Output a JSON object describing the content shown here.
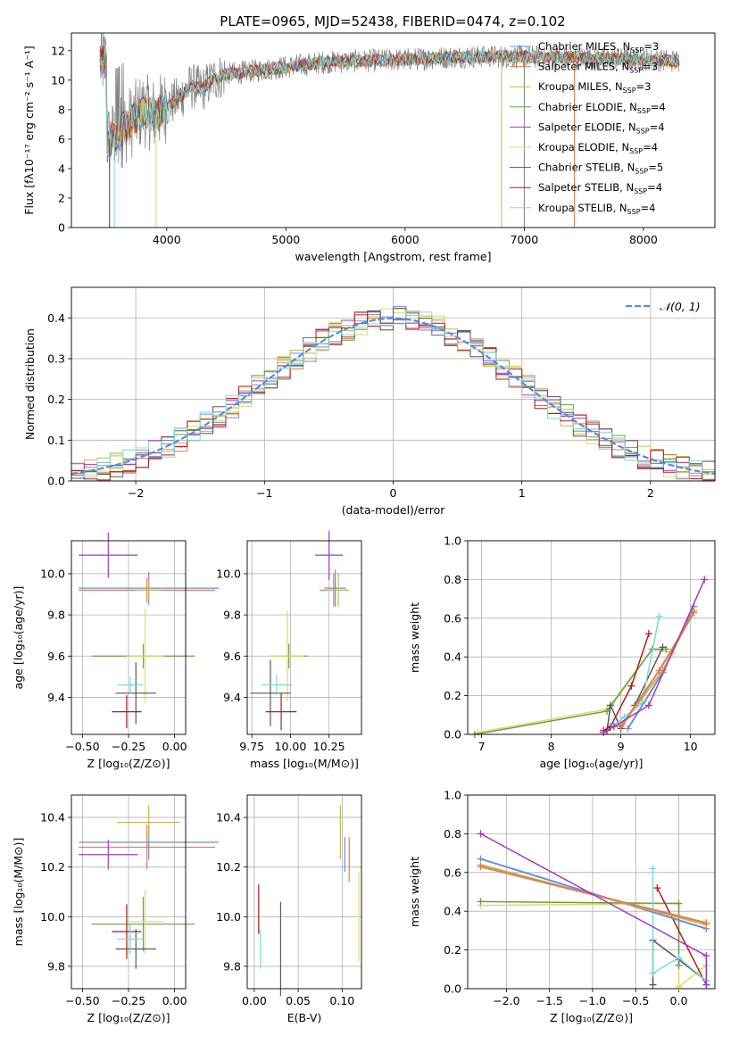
{
  "figure": {
    "title": "PLATE=0965, MJD=52438, FIBERID=0474, z=0.102"
  },
  "colors": {
    "miles_chabrier": "#6a8fdb",
    "miles_salpeter": "#e07c50",
    "miles_kroupa": "#c8b454",
    "elodie_chabrier": "#6b9c52",
    "elodie_salpeter": "#a03cc0",
    "elodie_kroupa": "#d8de62",
    "stelib_chabrier": "#585858",
    "stelib_salpeter": "#b01c1c",
    "stelib_kroupa": "#7ed8dc",
    "gray": "#7f7f7f"
  },
  "chart_data": [
    {
      "id": "spectrum",
      "type": "line",
      "xlabel": "wavelength [Angstrom, rest frame]",
      "ylabel": "Flux [fλ10⁻¹⁷ erg cm⁻² s⁻¹ A⁻¹]",
      "xlim": [
        3200,
        8600
      ],
      "ylim": [
        0,
        13.2
      ],
      "xticks": [
        4000,
        5000,
        6000,
        7000,
        8000
      ],
      "yticks": [
        0,
        2,
        4,
        6,
        8,
        10,
        12
      ],
      "continuum": {
        "x": [
          3500,
          3600,
          3700,
          3800,
          3900,
          4000,
          4100,
          4200,
          4300,
          4400,
          4500,
          4700,
          5000,
          5300,
          5600,
          6000,
          6500,
          7000,
          7500,
          8000,
          8300
        ],
        "y": [
          5.9,
          6.4,
          7.2,
          8.0,
          7.6,
          8.3,
          8.7,
          9.6,
          9.4,
          10.1,
          10.4,
          10.6,
          10.9,
          11.2,
          11.3,
          11.4,
          11.6,
          11.6,
          11.5,
          11.4,
          11.3
        ]
      },
      "legend": [
        {
          "label": "Chabrier MILES, N",
          "sub": "SSP",
          "suffix": "=3"
        },
        {
          "label": "Salpeter MILES, N",
          "sub": "SSP",
          "suffix": "=3"
        },
        {
          "label": "Kroupa MILES, N",
          "sub": "SSP",
          "suffix": "=3"
        },
        {
          "label": "Chabrier ELODIE, N",
          "sub": "SSP",
          "suffix": "=4"
        },
        {
          "label": "Salpeter ELODIE, N",
          "sub": "SSP",
          "suffix": "=4"
        },
        {
          "label": "Kroupa ELODIE, N",
          "sub": "SSP",
          "suffix": "=4"
        },
        {
          "label": "Chabrier STELIB, N",
          "sub": "SSP",
          "suffix": "=5"
        },
        {
          "label": "Salpeter STELIB, N",
          "sub": "SSP",
          "suffix": "=4"
        },
        {
          "label": "Kroupa STELIB, N",
          "sub": "SSP",
          "suffix": "=4"
        }
      ],
      "grid": false
    },
    {
      "id": "residuals",
      "type": "histogram",
      "xlabel": "(data-model)/error",
      "ylabel": "Normed distribution",
      "xlim": [
        -2.5,
        2.5
      ],
      "ylim": [
        0,
        0.475
      ],
      "xticks": [
        -2,
        -1,
        0,
        1,
        2
      ],
      "yticks": [
        0.0,
        0.1,
        0.2,
        0.3,
        0.4
      ],
      "bin_width": 0.1,
      "legend": "𝒩(0, 1)",
      "grid": true
    },
    {
      "id": "age_vs_Z",
      "type": "errorbar",
      "xlabel": "Z [log₁₀(Z/Z⊙)]",
      "ylabel": "age  [log₁₀(age/yr)]",
      "xlim": [
        -0.56,
        0.06
      ],
      "ylim": [
        9.22,
        10.16
      ],
      "xticks": [
        -0.5,
        -0.25,
        0.0
      ],
      "yticks": [
        9.4,
        9.6,
        9.8,
        10.0
      ],
      "points": [
        {
          "x": -0.14,
          "y": 9.93,
          "xerr": 0.38,
          "yerr": 0.08,
          "c": "miles_chabrier"
        },
        {
          "x": -0.15,
          "y": 9.92,
          "xerr": 0.37,
          "yerr": 0.06,
          "c": "miles_salpeter"
        },
        {
          "x": -0.14,
          "y": 9.92,
          "xerr": 0.07,
          "yerr": 0.05,
          "c": "miles_kroupa"
        },
        {
          "x": -0.17,
          "y": 9.6,
          "xerr": 0.28,
          "yerr": 0.06,
          "c": "elodie_chabrier"
        },
        {
          "x": -0.36,
          "y": 10.09,
          "xerr": 0.16,
          "yerr": 0.11,
          "c": "elodie_salpeter"
        },
        {
          "x": -0.16,
          "y": 9.6,
          "xerr": 0.1,
          "yerr": 0.23,
          "c": "elodie_kroupa"
        },
        {
          "x": -0.21,
          "y": 9.42,
          "xerr": 0.11,
          "yerr": 0.15,
          "c": "stelib_chabrier"
        },
        {
          "x": -0.26,
          "y": 9.33,
          "xerr": 0.08,
          "yerr": 0.08,
          "c": "stelib_salpeter"
        },
        {
          "x": -0.24,
          "y": 9.46,
          "xerr": 0.07,
          "yerr": 0.04,
          "c": "stelib_kroupa"
        }
      ],
      "grid": true
    },
    {
      "id": "age_vs_mass",
      "type": "errorbar",
      "xlabel": "mass [log₁₀(M/M⊙)]",
      "ylabel": "",
      "xlim": [
        9.72,
        10.46
      ],
      "ylim": [
        9.22,
        10.16
      ],
      "xticks": [
        9.75,
        10.0,
        10.25
      ],
      "yticks": [
        9.4,
        9.6,
        9.8,
        10.0
      ],
      "points": [
        {
          "x": 10.29,
          "y": 9.93,
          "xerr": 0.07,
          "yerr": 0.09,
          "c": "miles_chabrier"
        },
        {
          "x": 10.28,
          "y": 9.92,
          "xerr": 0.09,
          "yerr": 0.08,
          "c": "miles_salpeter"
        },
        {
          "x": 10.31,
          "y": 9.92,
          "xerr": 0.07,
          "yerr": 0.08,
          "c": "miles_kroupa"
        },
        {
          "x": 9.99,
          "y": 9.6,
          "xerr": 0.12,
          "yerr": 0.06,
          "c": "elodie_chabrier"
        },
        {
          "x": 10.25,
          "y": 10.09,
          "xerr": 0.09,
          "yerr": 0.12,
          "c": "elodie_salpeter"
        },
        {
          "x": 9.98,
          "y": 9.6,
          "xerr": 0.11,
          "yerr": 0.22,
          "c": "elodie_kroupa"
        },
        {
          "x": 9.87,
          "y": 9.42,
          "xerr": 0.13,
          "yerr": 0.16,
          "c": "stelib_chabrier"
        },
        {
          "x": 9.94,
          "y": 9.33,
          "xerr": 0.1,
          "yerr": 0.09,
          "c": "stelib_salpeter"
        },
        {
          "x": 9.91,
          "y": 9.46,
          "xerr": 0.1,
          "yerr": 0.05,
          "c": "stelib_kroupa"
        }
      ],
      "grid": true
    },
    {
      "id": "mass_vs_Z",
      "type": "errorbar",
      "xlabel": "Z [log₁₀(Z/Z⊙)]",
      "ylabel": "mass [log₁₀(M/M⊙)]",
      "xlim": [
        -0.56,
        0.06
      ],
      "ylim": [
        9.71,
        10.49
      ],
      "xticks": [
        -0.5,
        -0.25,
        0.0
      ],
      "yticks": [
        9.8,
        10.0,
        10.2,
        10.4
      ],
      "points": [
        {
          "x": -0.14,
          "y": 10.3,
          "xerr": 0.38,
          "yerr": 0.07,
          "c": "miles_chabrier"
        },
        {
          "x": -0.15,
          "y": 10.28,
          "xerr": 0.37,
          "yerr": 0.09,
          "c": "miles_salpeter"
        },
        {
          "x": -0.14,
          "y": 10.38,
          "xerr": 0.17,
          "yerr": 0.07,
          "c": "miles_kroupa"
        },
        {
          "x": -0.17,
          "y": 9.97,
          "xerr": 0.28,
          "yerr": 0.11,
          "c": "elodie_chabrier"
        },
        {
          "x": -0.36,
          "y": 10.25,
          "xerr": 0.16,
          "yerr": 0.06,
          "c": "elodie_salpeter"
        },
        {
          "x": -0.16,
          "y": 9.98,
          "xerr": 0.1,
          "yerr": 0.13,
          "c": "elodie_kroupa"
        },
        {
          "x": -0.21,
          "y": 9.87,
          "xerr": 0.11,
          "yerr": 0.08,
          "c": "stelib_chabrier"
        },
        {
          "x": -0.26,
          "y": 9.94,
          "xerr": 0.08,
          "yerr": 0.11,
          "c": "stelib_salpeter"
        },
        {
          "x": -0.24,
          "y": 9.91,
          "xerr": 0.07,
          "yerr": 0.06,
          "c": "stelib_kroupa"
        }
      ],
      "grid": true
    },
    {
      "id": "mass_vs_ebv",
      "type": "errorbar",
      "xlabel": "E(B-V)",
      "ylabel": "",
      "xlim": [
        -0.008,
        0.122
      ],
      "ylim": [
        9.71,
        10.49
      ],
      "xticks": [
        0.0,
        0.05,
        0.1
      ],
      "yticks": [
        9.8,
        10.0,
        10.2,
        10.4
      ],
      "points": [
        {
          "x": 0.103,
          "y": 10.25,
          "xerr": 0,
          "yerr": 0.07,
          "c": "miles_chabrier"
        },
        {
          "x": 0.108,
          "y": 10.23,
          "xerr": 0,
          "yerr": 0.09,
          "c": "miles_salpeter"
        },
        {
          "x": 0.098,
          "y": 10.34,
          "xerr": 0,
          "yerr": 0.11,
          "c": "miles_kroupa"
        },
        {
          "x": 0.119,
          "y": 10.0,
          "xerr": 0,
          "yerr": 0.18,
          "c": "elodie_kroupa"
        },
        {
          "x": 0.03,
          "y": 9.87,
          "xerr": 0,
          "yerr": 0.19,
          "c": "stelib_chabrier"
        },
        {
          "x": 0.005,
          "y": 10.03,
          "xerr": 0,
          "yerr": 0.1,
          "c": "stelib_salpeter"
        },
        {
          "x": 0.007,
          "y": 9.87,
          "xerr": 0,
          "yerr": 0.08,
          "c": "stelib_kroupa"
        }
      ],
      "grid": true
    },
    {
      "id": "weight_vs_age",
      "type": "line",
      "xlabel": "age  [log₁₀(age/yr)]",
      "ylabel": "mass weight",
      "xlim": [
        6.8,
        10.35
      ],
      "ylim": [
        0,
        1.0
      ],
      "xticks": [
        7,
        8,
        9,
        10
      ],
      "yticks": [
        0.0,
        0.2,
        0.4,
        0.6,
        0.8,
        1.0
      ],
      "series": [
        {
          "c": "miles_chabrier",
          "x": [
            9.1,
            9.6,
            10.05
          ],
          "y": [
            0.03,
            0.32,
            0.66
          ]
        },
        {
          "c": "miles_salpeter",
          "x": [
            9.0,
            9.55,
            10.05
          ],
          "y": [
            0.04,
            0.33,
            0.63
          ]
        },
        {
          "c": "miles_kroupa",
          "x": [
            9.02,
            9.6,
            10.05
          ],
          "y": [
            0.05,
            0.33,
            0.64
          ]
        },
        {
          "c": "elodie_chabrier",
          "x": [
            6.9,
            8.8,
            9.45,
            9.65
          ],
          "y": [
            0.0,
            0.12,
            0.44,
            0.44
          ]
        },
        {
          "c": "elodie_salpeter",
          "x": [
            8.75,
            8.9,
            9.4,
            10.2
          ],
          "y": [
            0.01,
            0.04,
            0.15,
            0.8
          ]
        },
        {
          "c": "elodie_kroupa",
          "x": [
            6.95,
            8.8,
            9.45,
            9.75
          ],
          "y": [
            0.01,
            0.13,
            0.44,
            0.42
          ]
        },
        {
          "c": "stelib_chabrier",
          "x": [
            8.8,
            8.85,
            9.0,
            9.2,
            9.6
          ],
          "y": [
            0.02,
            0.15,
            0.03,
            0.15,
            0.45
          ]
        },
        {
          "c": "stelib_salpeter",
          "x": [
            8.75,
            8.85,
            9.15,
            9.4
          ],
          "y": [
            0.02,
            0.04,
            0.25,
            0.52
          ]
        },
        {
          "c": "stelib_kroupa",
          "x": [
            8.9,
            9.05,
            9.3,
            9.55
          ],
          "y": [
            0.05,
            0.09,
            0.16,
            0.61
          ]
        }
      ],
      "grid": true
    },
    {
      "id": "weight_vs_Z",
      "type": "line",
      "xlabel": "Z [log₁₀(Z/Z⊙)]",
      "ylabel": "mass weight",
      "xlim": [
        -2.45,
        0.42
      ],
      "ylim": [
        0,
        1.0
      ],
      "xticks": [
        -2.0,
        -1.5,
        -1.0,
        -0.5,
        0.0
      ],
      "yticks": [
        0.0,
        0.2,
        0.4,
        0.6,
        0.8,
        1.0
      ],
      "series": [
        {
          "c": "miles_chabrier",
          "x": [
            -2.3,
            0.32
          ],
          "y": [
            0.67,
            0.31
          ]
        },
        {
          "c": "miles_salpeter",
          "x": [
            -2.3,
            0.32
          ],
          "y": [
            0.63,
            0.34
          ]
        },
        {
          "c": "miles_kroupa",
          "x": [
            -2.3,
            0.32
          ],
          "y": [
            0.64,
            0.33
          ]
        },
        {
          "c": "elodie_chabrier",
          "x": [
            -2.3,
            0.0,
            0.0
          ],
          "y": [
            0.45,
            0.44,
            0.12
          ]
        },
        {
          "c": "elodie_salpeter",
          "x": [
            -2.3,
            0.32,
            0.32
          ],
          "y": [
            0.8,
            0.17,
            0.02
          ]
        },
        {
          "c": "elodie_kroupa",
          "x": [
            -2.3,
            0.0,
            0.0,
            0.32
          ],
          "y": [
            0.43,
            0.44,
            0.01,
            0.12
          ]
        },
        {
          "c": "stelib_chabrier",
          "x": [
            -0.3,
            -0.3,
            0.0,
            0.32
          ],
          "y": [
            0.02,
            0.25,
            0.15,
            0.04
          ]
        },
        {
          "c": "stelib_salpeter",
          "x": [
            -0.25,
            0.32,
            0.32
          ],
          "y": [
            0.52,
            0.02,
            0.04
          ]
        },
        {
          "c": "stelib_kroupa",
          "x": [
            -0.3,
            -0.3,
            0.0,
            0.32
          ],
          "y": [
            0.62,
            0.08,
            0.16,
            0.04
          ]
        }
      ],
      "grid": true
    }
  ]
}
